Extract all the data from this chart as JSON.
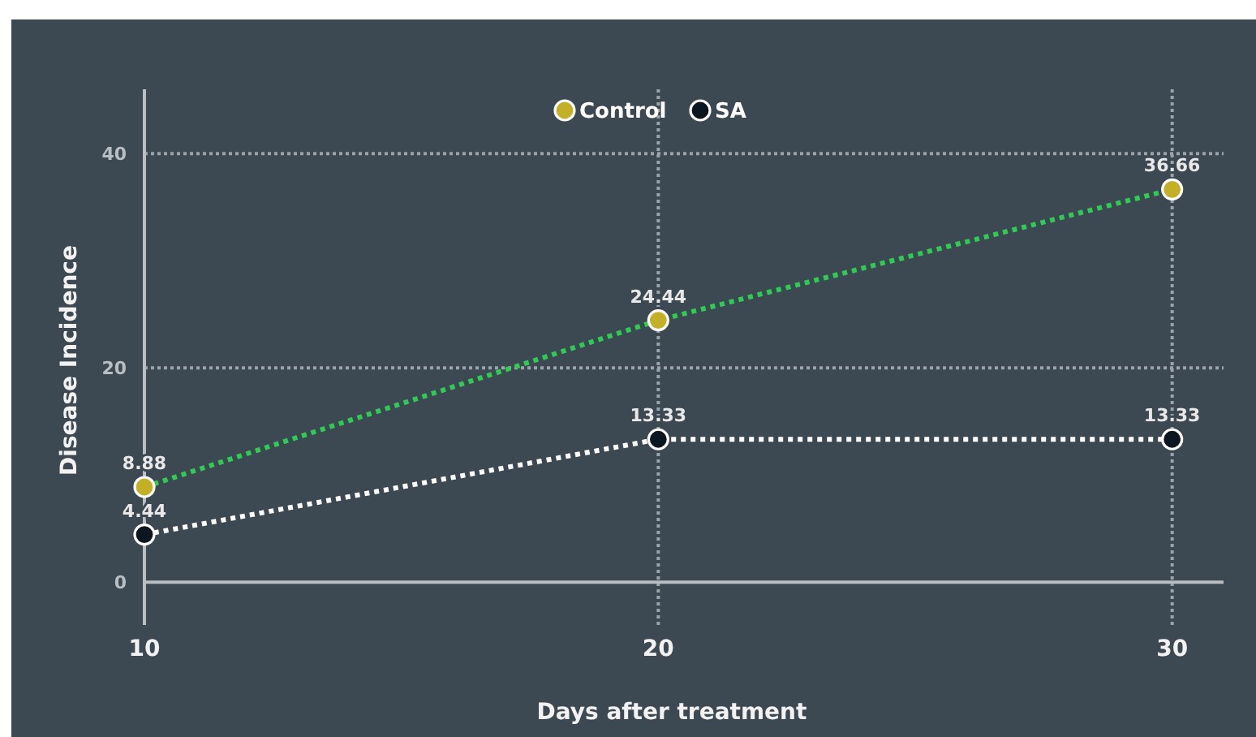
{
  "chart_data": {
    "type": "line",
    "xlabel": "Days after treatment",
    "ylabel": "Disease Incidence",
    "x": [
      10,
      20,
      30
    ],
    "xlim": [
      10,
      31
    ],
    "xticks": [
      10,
      20,
      30
    ],
    "ylim": [
      -4,
      46
    ],
    "yticks": [
      0,
      20,
      40
    ],
    "series": [
      {
        "name": "Control",
        "color": "#2ecc52",
        "colors": [
          "#c4b026",
          "#c4b026",
          "#c4b026"
        ],
        "values": [
          8.88,
          24.44,
          36.66
        ]
      },
      {
        "name": "SA",
        "color": "#ffffff",
        "colors": [
          "#0b1620",
          "#0b1620",
          "#0b1620"
        ],
        "values": [
          4.44,
          13.33,
          13.33
        ]
      }
    ],
    "grid": true,
    "legend": "top",
    "marker": "circle",
    "line_style": "dotted",
    "data_labels": true
  }
}
